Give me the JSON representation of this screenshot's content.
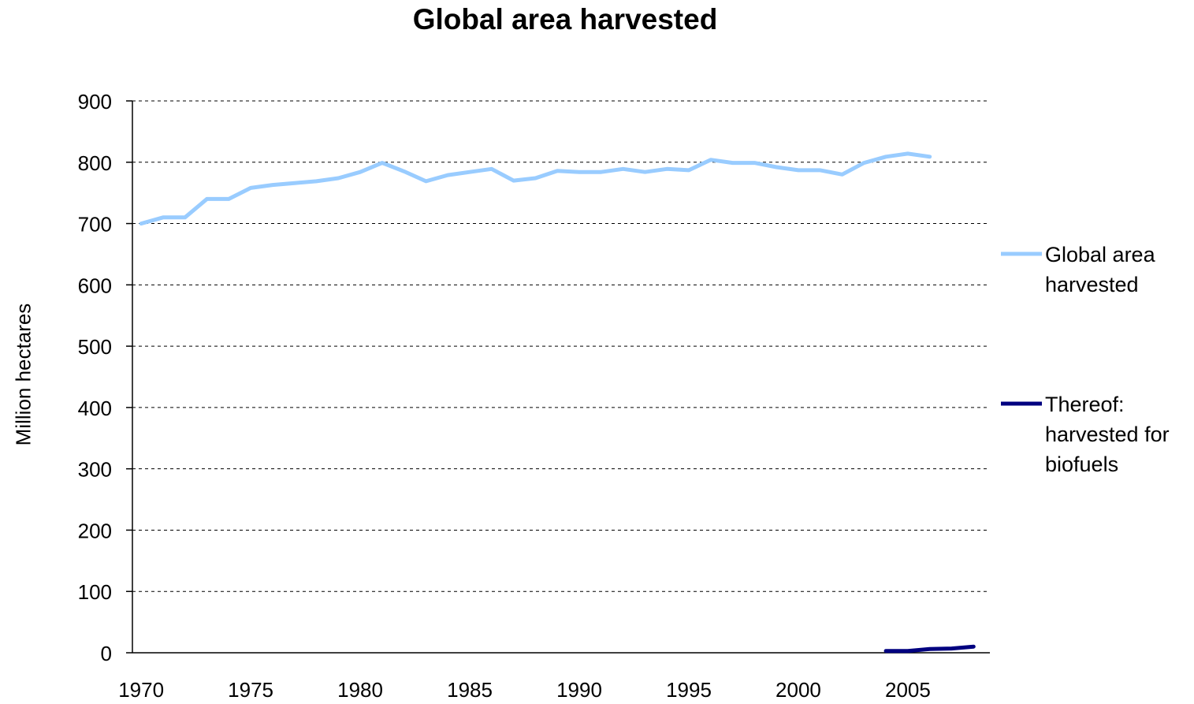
{
  "chart_data": {
    "type": "line",
    "title": "Global area harvested",
    "ylabel": "Million hectares",
    "xlabel": "",
    "ylim": [
      0,
      900
    ],
    "xlim": [
      1970,
      2008
    ],
    "yticks": [
      "0",
      "100",
      "200",
      "300",
      "400",
      "500",
      "600",
      "700",
      "800",
      "900"
    ],
    "xticks": [
      "1970",
      "1975",
      "1980",
      "1985",
      "1990",
      "1995",
      "2000",
      "2005"
    ],
    "grid": "horizontal dashed",
    "legend_position": "right",
    "series": [
      {
        "name": "Global area harvested",
        "color": "#99ccff",
        "x": [
          1970,
          1971,
          1972,
          1973,
          1974,
          1975,
          1976,
          1977,
          1978,
          1979,
          1980,
          1981,
          1982,
          1983,
          1984,
          1985,
          1986,
          1987,
          1988,
          1989,
          1990,
          1991,
          1992,
          1993,
          1994,
          1995,
          1996,
          1997,
          1998,
          1999,
          2000,
          2001,
          2002,
          2003,
          2004,
          2005,
          2006
        ],
        "values": [
          700,
          710,
          710,
          740,
          740,
          758,
          763,
          766,
          769,
          774,
          784,
          799,
          785,
          769,
          779,
          784,
          789,
          770,
          774,
          786,
          784,
          784,
          789,
          784,
          789,
          787,
          804,
          799,
          799,
          792,
          787,
          787,
          780,
          799,
          809,
          814,
          809
        ]
      },
      {
        "name": "Thereof: harvested for biofuels",
        "color": "#000080",
        "x": [
          2004,
          2005,
          2006,
          2007,
          2008
        ],
        "values": [
          3,
          3,
          6,
          7,
          10
        ]
      }
    ]
  }
}
